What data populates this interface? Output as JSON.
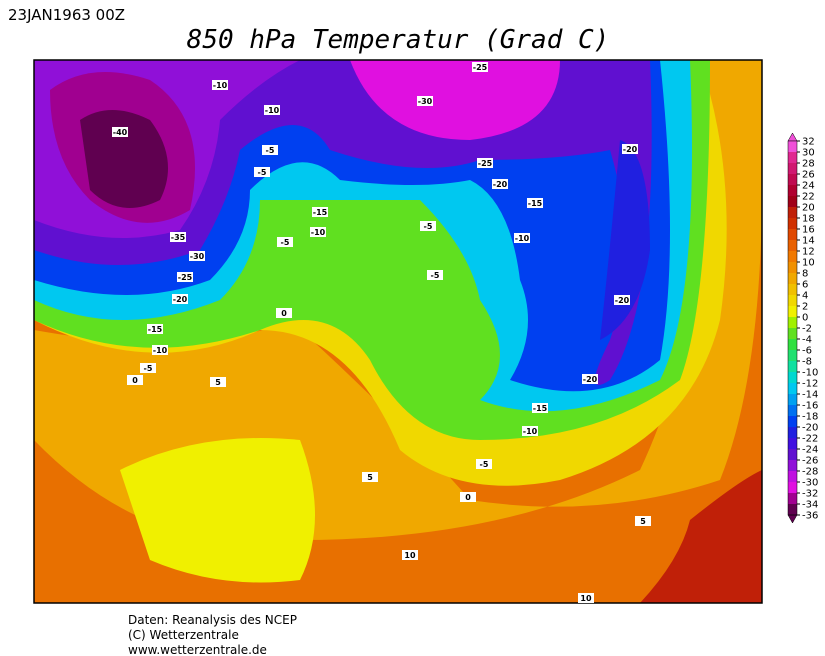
{
  "header": {
    "date": "23JAN1963 00Z",
    "title": "850 hPa Temperatur (Grad C)"
  },
  "map": {
    "contour_labels": [
      "-25",
      "-10",
      "-30",
      "-10",
      "-40",
      "-5",
      "-20",
      "-5",
      "-25",
      "-20",
      "-15",
      "-15",
      "-10",
      "-5",
      "-5",
      "-35",
      "-10",
      "-30",
      "-5",
      "-25",
      "-20",
      "-20",
      "0",
      "-15",
      "-10",
      "-5",
      "0",
      "5",
      "-20",
      "-15",
      "-10",
      "-5",
      "5",
      "0",
      "5",
      "10",
      "10"
    ]
  },
  "legend": {
    "ticks": [
      32,
      30,
      28,
      26,
      24,
      22,
      20,
      18,
      16,
      14,
      12,
      10,
      8,
      6,
      4,
      2,
      0,
      -2,
      -4,
      -6,
      -8,
      -10,
      -12,
      -14,
      -16,
      -18,
      -20,
      -22,
      -24,
      -26,
      -28,
      -30,
      -32,
      -34,
      -36
    ],
    "colors": [
      "#f050d8",
      "#e02890",
      "#d01870",
      "#c00a50",
      "#b00030",
      "#a00018",
      "#c02008",
      "#d03000",
      "#e04800",
      "#e86000",
      "#f07800",
      "#f09000",
      "#f0a800",
      "#f0c000",
      "#f0d800",
      "#f0f000",
      "#a0f000",
      "#60e020",
      "#30e040",
      "#20e070",
      "#10e0a0",
      "#00d8d0",
      "#00c8f0",
      "#00a0f0",
      "#0070f0",
      "#0040f0",
      "#2020e0",
      "#4010e0",
      "#6010d0",
      "#9010d8",
      "#c010e0",
      "#e010e0",
      "#a00090",
      "#600050"
    ]
  },
  "footer": {
    "lines": [
      "Daten: Reanalysis des NCEP",
      "(C) Wetterzentrale",
      "www.wetterzentrale.de"
    ]
  }
}
